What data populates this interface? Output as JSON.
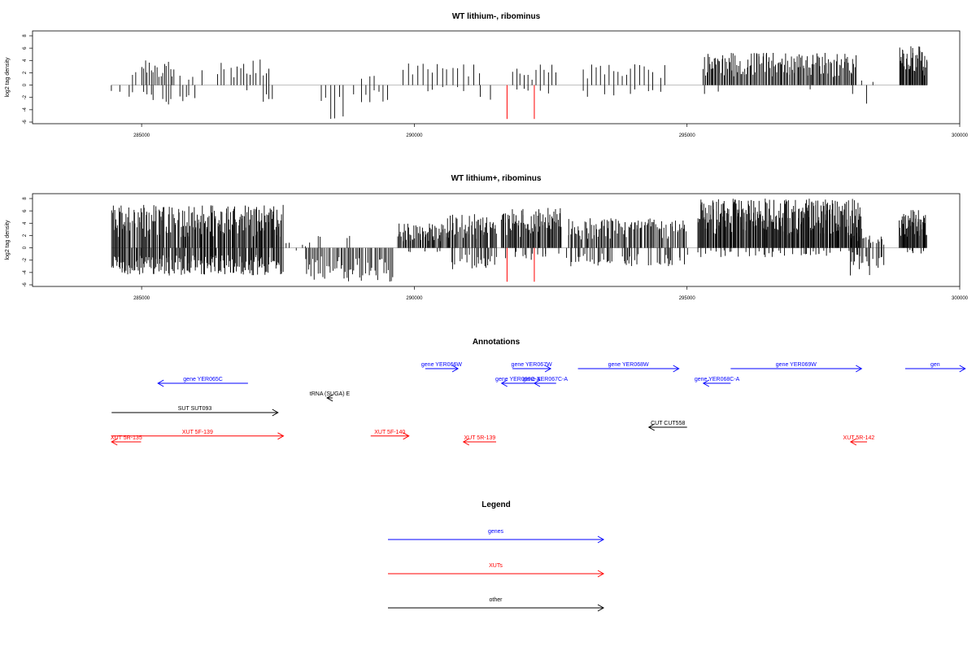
{
  "chart_data": [
    {
      "type": "bar",
      "title": "WT lithium-, ribominus",
      "ylabel": "log2 tag density",
      "xlim": [
        283000,
        300000
      ],
      "ylim": [
        -6,
        8
      ],
      "xticks": [
        "285000",
        "290000",
        "295000",
        "300000"
      ],
      "yticks": [
        "-6",
        "-4",
        "-2",
        "0",
        "2",
        "4",
        "6",
        "8"
      ],
      "baseline_range": [
        284450,
        299400
      ],
      "density_segments": [
        {
          "start": 284450,
          "end": 284600,
          "count": 2,
          "pos": 0.0,
          "pmax": 0.6,
          "neg": 1.0,
          "nmax": 1.2
        },
        {
          "start": 284700,
          "end": 284900,
          "count": 4,
          "pos": 0.7,
          "pmax": 4.0,
          "neg": 0.5,
          "nmax": 2.0
        },
        {
          "start": 285000,
          "end": 285600,
          "count": 18,
          "pos": 0.95,
          "pmax": 4.3,
          "neg": 0.5,
          "nmax": 3.5
        },
        {
          "start": 285700,
          "end": 286100,
          "count": 8,
          "pos": 0.8,
          "pmax": 2.5,
          "neg": 0.6,
          "nmax": 3.0
        },
        {
          "start": 286400,
          "end": 287400,
          "count": 18,
          "pos": 0.9,
          "pmax": 4.2,
          "neg": 0.3,
          "nmax": 3.0
        },
        {
          "start": 288300,
          "end": 288700,
          "count": 6,
          "pos": 0.0,
          "pmax": 0,
          "neg": 0.9,
          "nmax": 5.5
        },
        {
          "start": 288800,
          "end": 289500,
          "count": 10,
          "pos": 0.4,
          "pmax": 1.5,
          "neg": 0.8,
          "nmax": 3.0
        },
        {
          "start": 289800,
          "end": 290600,
          "count": 10,
          "pos": 0.9,
          "pmax": 4.0,
          "neg": 0.2,
          "nmax": 1.0
        },
        {
          "start": 290700,
          "end": 291200,
          "count": 6,
          "pos": 0.9,
          "pmax": 3.8,
          "neg": 0.2,
          "nmax": 1.0
        },
        {
          "start": 291200,
          "end": 291400,
          "count": 2,
          "pos": 0.0,
          "pmax": 0,
          "neg": 1.0,
          "nmax": 3.0
        },
        {
          "start": 291800,
          "end": 292600,
          "count": 12,
          "pos": 0.9,
          "pmax": 3.4,
          "neg": 0.3,
          "nmax": 1.5
        },
        {
          "start": 293100,
          "end": 294600,
          "count": 20,
          "pos": 0.95,
          "pmax": 3.4,
          "neg": 0.2,
          "nmax": 2.0
        },
        {
          "start": 295300,
          "end": 298100,
          "count": 140,
          "pos": 1.0,
          "pmax": 5.3,
          "neg": 0.05,
          "nmax": 1.5
        },
        {
          "start": 298200,
          "end": 298400,
          "count": 3,
          "pos": 0.3,
          "pmax": 1.0,
          "neg": 0.9,
          "nmax": 3.4
        },
        {
          "start": 298900,
          "end": 299400,
          "count": 40,
          "pos": 1.0,
          "pmax": 6.3,
          "neg": 0.0,
          "nmax": 0
        }
      ],
      "red_marks": [
        {
          "x": 291700,
          "y": -5.5
        },
        {
          "x": 292200,
          "y": -5.5
        }
      ]
    },
    {
      "type": "bar",
      "title": "WT lithium+, ribominus",
      "ylabel": "log2 tag density",
      "xlim": [
        283000,
        300000
      ],
      "ylim": [
        -6,
        8
      ],
      "xticks": [
        "285000",
        "290000",
        "295000",
        "300000"
      ],
      "yticks": [
        "-6",
        "-4",
        "-2",
        "0",
        "2",
        "4",
        "6",
        "8"
      ],
      "baseline_range": [
        284450,
        299400
      ],
      "density_segments": [
        {
          "start": 284450,
          "end": 287600,
          "count": 220,
          "pos": 0.95,
          "pmax": 7.0,
          "neg": 0.9,
          "nmax": 4.5
        },
        {
          "start": 287600,
          "end": 288000,
          "count": 8,
          "pos": 0.6,
          "pmax": 1.0,
          "neg": 0.3,
          "nmax": 1.0
        },
        {
          "start": 288000,
          "end": 289600,
          "count": 60,
          "pos": 0.1,
          "pmax": 2.0,
          "neg": 0.95,
          "nmax": 5.5
        },
        {
          "start": 289700,
          "end": 290600,
          "count": 60,
          "pos": 0.95,
          "pmax": 4.0,
          "neg": 0.1,
          "nmax": 1.0
        },
        {
          "start": 290600,
          "end": 291500,
          "count": 55,
          "pos": 0.95,
          "pmax": 5.5,
          "neg": 0.5,
          "nmax": 3.5
        },
        {
          "start": 291600,
          "end": 292700,
          "count": 70,
          "pos": 0.95,
          "pmax": 6.5,
          "neg": 0.2,
          "nmax": 2.0
        },
        {
          "start": 292800,
          "end": 295000,
          "count": 110,
          "pos": 0.9,
          "pmax": 4.8,
          "neg": 0.5,
          "nmax": 3.0
        },
        {
          "start": 295200,
          "end": 298200,
          "count": 260,
          "pos": 1.0,
          "pmax": 8.0,
          "neg": 0.15,
          "nmax": 1.5
        },
        {
          "start": 298000,
          "end": 298600,
          "count": 25,
          "pos": 0.7,
          "pmax": 2.0,
          "neg": 0.8,
          "nmax": 4.5
        },
        {
          "start": 298900,
          "end": 299400,
          "count": 50,
          "pos": 1.0,
          "pmax": 6.3,
          "neg": 0.1,
          "nmax": 1.0
        }
      ],
      "red_marks": [
        {
          "x": 291700,
          "y": -5.5
        },
        {
          "x": 292200,
          "y": -5.5
        }
      ]
    }
  ],
  "annotations": {
    "title": "Annotations",
    "xlim": [
      283000,
      300000
    ],
    "colors": {
      "genes": "#0000ff",
      "XUTs": "#ff0000",
      "other": "#000000"
    },
    "features": [
      {
        "label": "gene YER065C",
        "start": 285300,
        "end": 286950,
        "strand": "-",
        "color": "#0000ff",
        "row": 1
      },
      {
        "label": "gene YER066W",
        "start": 290200,
        "end": 290800,
        "strand": "+",
        "color": "#0000ff",
        "row": 0
      },
      {
        "label": "gene YER067W",
        "start": 291800,
        "end": 292500,
        "strand": "+",
        "color": "#0000ff",
        "row": 0
      },
      {
        "label": "gene YER066C-A",
        "start": 291600,
        "end": 292200,
        "strand": "-",
        "color": "#0000ff",
        "row": 1
      },
      {
        "label": "gene YER067C-A",
        "start": 292200,
        "end": 292600,
        "strand": "-",
        "color": "#0000ff",
        "row": 1
      },
      {
        "label": "gene YER068W",
        "start": 293000,
        "end": 294850,
        "strand": "+",
        "color": "#0000ff",
        "row": 0
      },
      {
        "label": "gene YER068C-A",
        "start": 295300,
        "end": 295800,
        "strand": "-",
        "color": "#0000ff",
        "row": 1
      },
      {
        "label": "gene YER069W",
        "start": 295800,
        "end": 298200,
        "strand": "+",
        "color": "#0000ff",
        "row": 0
      },
      {
        "label": "gen",
        "start": 299000,
        "end": 300100,
        "strand": "+",
        "color": "#0000ff",
        "row": 0
      },
      {
        "label": "tRNA (SUGA) E",
        "start": 288400,
        "end": 288500,
        "strand": "-",
        "color": "#000000",
        "row": 2
      },
      {
        "label": "SUT SUT093",
        "start": 284450,
        "end": 287500,
        "strand": "+",
        "color": "#000000",
        "row": 3
      },
      {
        "label": "CUT CUT558",
        "start": 294300,
        "end": 295000,
        "strand": "-",
        "color": "#000000",
        "row": 4
      },
      {
        "label": "XUT 5R-135",
        "start": 284450,
        "end": 284990,
        "strand": "-",
        "color": "#ff0000",
        "row": 5
      },
      {
        "label": "XUT 5F-139",
        "start": 284450,
        "end": 287600,
        "strand": "+",
        "color": "#ff0000",
        "row": 4.6
      },
      {
        "label": "XUT 5F-140",
        "start": 289200,
        "end": 289900,
        "strand": "+",
        "color": "#ff0000",
        "row": 4.6
      },
      {
        "label": "XUT 5R-139",
        "start": 290900,
        "end": 291500,
        "strand": "-",
        "color": "#ff0000",
        "row": 5
      },
      {
        "label": "XUT 5R-142",
        "start": 298000,
        "end": 298300,
        "strand": "-",
        "color": "#ff0000",
        "row": 5
      }
    ]
  },
  "legend": {
    "title": "Legend",
    "items": [
      {
        "label": "genes",
        "color": "#0000ff"
      },
      {
        "label": "XUTs",
        "color": "#ff0000"
      },
      {
        "label": "other",
        "color": "#000000"
      }
    ]
  }
}
